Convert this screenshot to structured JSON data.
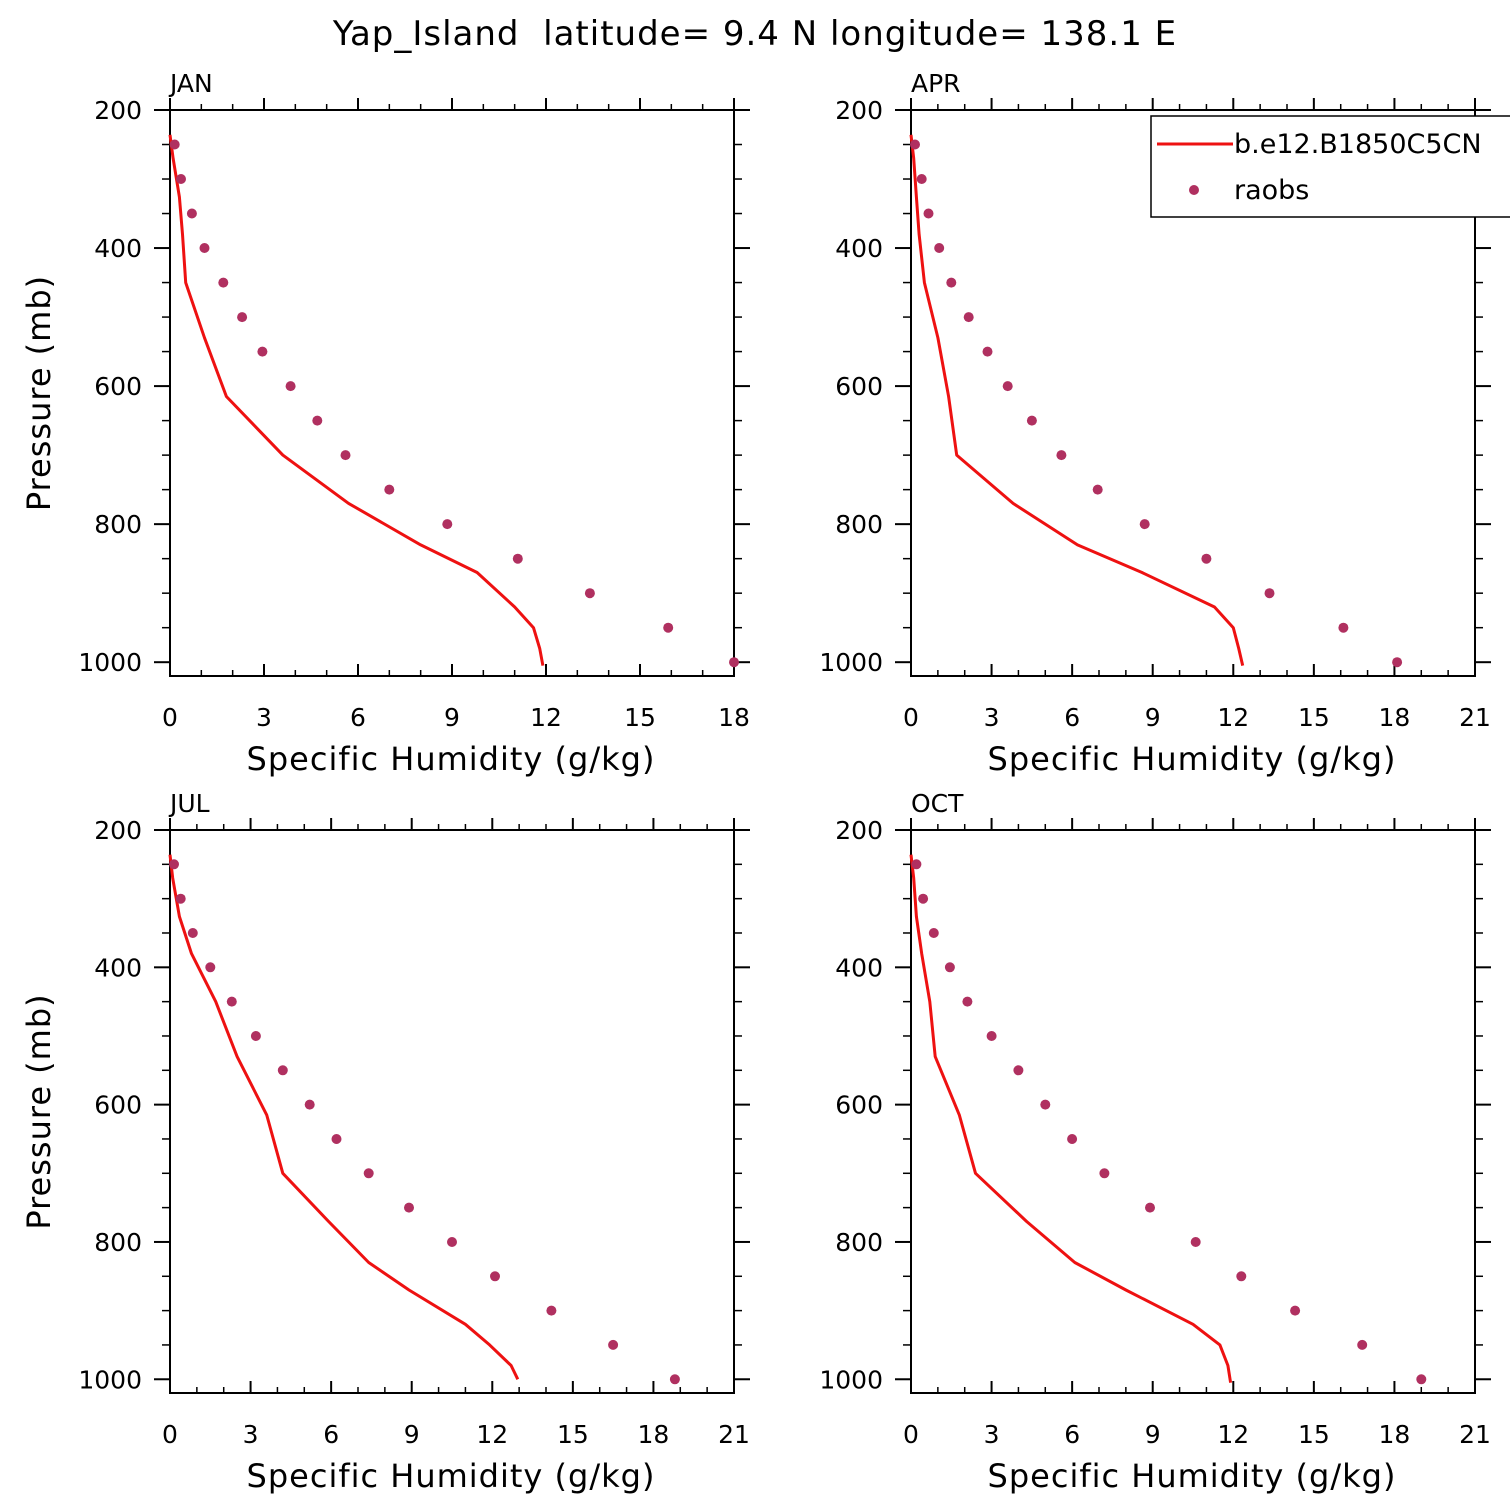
{
  "title": "Yap_Island  latitude= 9.4 N longitude= 138.1 E",
  "legend": {
    "model_label": "b.e12.B1850C5CN",
    "obs_label": "raobs",
    "model_color": "#ee1111",
    "obs_color": "#b03060"
  },
  "chart_data": [
    {
      "type": "line",
      "panel": "JAN",
      "title": "JAN",
      "xlabel": "Specific Humidity (g/kg)",
      "ylabel": "Pressure (mb)",
      "xlim": [
        0,
        18
      ],
      "xticks": [
        0,
        3,
        6,
        9,
        12,
        15,
        18
      ],
      "ylim": [
        200,
        1020
      ],
      "yticks": [
        200,
        400,
        600,
        800,
        1000
      ],
      "y_inverted": true,
      "series": [
        {
          "name": "b.e12.B1850C5CN",
          "kind": "line",
          "x": [
            0.0,
            0.1,
            0.3,
            0.4,
            0.5,
            1.1,
            1.8,
            3.6,
            5.7,
            8.0,
            9.8,
            11.0,
            11.6,
            11.8,
            11.9
          ],
          "y": [
            236,
            270,
            326,
            380,
            450,
            530,
            615,
            700,
            770,
            830,
            870,
            920,
            950,
            980,
            1005
          ]
        },
        {
          "name": "raobs",
          "kind": "scatter",
          "x": [
            0.15,
            0.35,
            0.7,
            1.1,
            1.7,
            2.3,
            2.95,
            3.85,
            4.7,
            5.6,
            7.0,
            8.85,
            11.1,
            13.4,
            15.9,
            18.0
          ],
          "y": [
            250,
            300,
            350,
            400,
            450,
            500,
            550,
            600,
            650,
            700,
            750,
            800,
            850,
            900,
            950,
            1000
          ]
        }
      ]
    },
    {
      "type": "line",
      "panel": "APR",
      "title": "APR",
      "xlabel": "Specific Humidity (g/kg)",
      "ylabel": "",
      "xlim": [
        0,
        21
      ],
      "xticks": [
        0,
        3,
        6,
        9,
        12,
        15,
        18,
        21
      ],
      "ylim": [
        200,
        1020
      ],
      "yticks": [
        200,
        400,
        600,
        800,
        1000
      ],
      "y_inverted": true,
      "series": [
        {
          "name": "b.e12.B1850C5CN",
          "kind": "line",
          "x": [
            0.0,
            0.1,
            0.2,
            0.3,
            0.5,
            1.0,
            1.4,
            1.7,
            3.8,
            6.2,
            8.6,
            11.3,
            12.0,
            12.2,
            12.35
          ],
          "y": [
            236,
            270,
            326,
            380,
            450,
            530,
            615,
            700,
            770,
            830,
            870,
            920,
            950,
            980,
            1005
          ]
        },
        {
          "name": "raobs",
          "kind": "scatter",
          "x": [
            0.15,
            0.4,
            0.65,
            1.05,
            1.5,
            2.15,
            2.85,
            3.6,
            4.5,
            5.6,
            6.95,
            8.7,
            11.0,
            13.35,
            16.1,
            18.1
          ],
          "y": [
            250,
            300,
            350,
            400,
            450,
            500,
            550,
            600,
            650,
            700,
            750,
            800,
            850,
            900,
            950,
            1000
          ]
        }
      ]
    },
    {
      "type": "line",
      "panel": "JUL",
      "title": "JUL",
      "xlabel": "Specific Humidity (g/kg)",
      "ylabel": "Pressure (mb)",
      "xlim": [
        0,
        21
      ],
      "xticks": [
        0,
        3,
        6,
        9,
        12,
        15,
        18,
        21
      ],
      "ylim": [
        200,
        1020
      ],
      "yticks": [
        200,
        400,
        600,
        800,
        1000
      ],
      "y_inverted": true,
      "series": [
        {
          "name": "b.e12.B1850C5CN",
          "kind": "line",
          "x": [
            0.0,
            0.1,
            0.35,
            0.8,
            1.7,
            2.5,
            3.6,
            4.2,
            5.9,
            7.4,
            8.9,
            11.0,
            11.9,
            12.7,
            12.95
          ],
          "y": [
            236,
            270,
            326,
            380,
            450,
            530,
            615,
            700,
            770,
            830,
            870,
            920,
            950,
            980,
            1000
          ]
        },
        {
          "name": "raobs",
          "kind": "scatter",
          "x": [
            0.15,
            0.4,
            0.85,
            1.5,
            2.3,
            3.2,
            4.2,
            5.2,
            6.2,
            7.4,
            8.9,
            10.5,
            12.1,
            14.2,
            16.5,
            18.8
          ],
          "y": [
            250,
            300,
            350,
            400,
            450,
            500,
            550,
            600,
            650,
            700,
            750,
            800,
            850,
            900,
            950,
            1000
          ]
        }
      ]
    },
    {
      "type": "line",
      "panel": "OCT",
      "title": "OCT",
      "xlabel": "Specific Humidity (g/kg)",
      "ylabel": "",
      "xlim": [
        0,
        21
      ],
      "xticks": [
        0,
        3,
        6,
        9,
        12,
        15,
        18,
        21
      ],
      "ylim": [
        200,
        1020
      ],
      "yticks": [
        200,
        400,
        600,
        800,
        1000
      ],
      "y_inverted": true,
      "series": [
        {
          "name": "b.e12.B1850C5CN",
          "kind": "line",
          "x": [
            0.0,
            0.1,
            0.2,
            0.4,
            0.7,
            0.9,
            1.8,
            2.4,
            4.3,
            6.1,
            8.0,
            10.5,
            11.5,
            11.8,
            11.9
          ],
          "y": [
            236,
            270,
            326,
            380,
            450,
            530,
            615,
            700,
            770,
            830,
            870,
            920,
            950,
            980,
            1005
          ]
        },
        {
          "name": "raobs",
          "kind": "scatter",
          "x": [
            0.2,
            0.45,
            0.85,
            1.45,
            2.1,
            3.0,
            4.0,
            5.0,
            6.0,
            7.2,
            8.9,
            10.6,
            12.3,
            14.3,
            16.8,
            19.0
          ],
          "y": [
            250,
            300,
            350,
            400,
            450,
            500,
            550,
            600,
            650,
            700,
            750,
            800,
            850,
            900,
            950,
            1000
          ]
        }
      ]
    }
  ]
}
